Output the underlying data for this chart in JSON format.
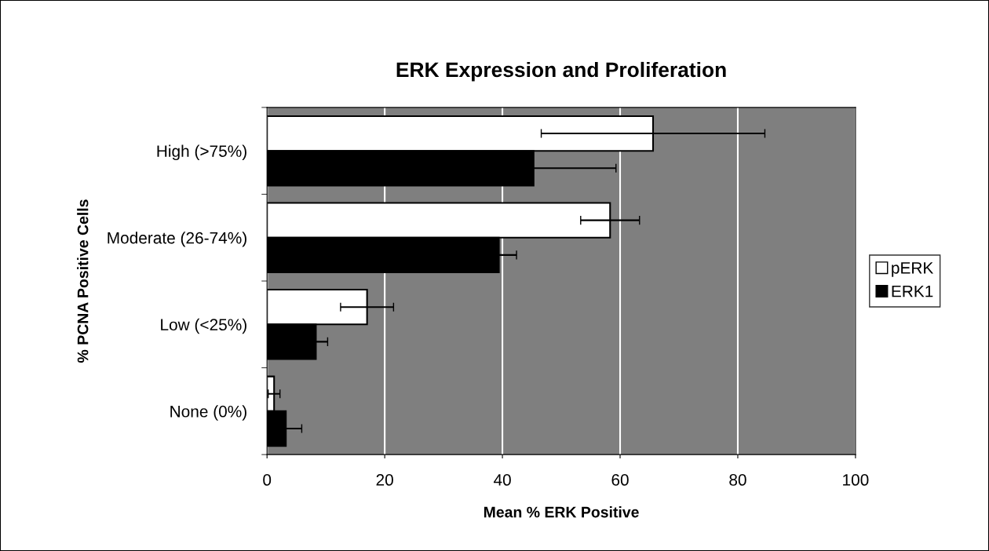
{
  "chart_data": {
    "type": "bar",
    "orientation": "horizontal",
    "title": "ERK Expression and Proliferation",
    "xlabel": "Mean % ERK Positive",
    "ylabel": "% PCNA Positive Cells",
    "categories": [
      "High (>75%)",
      "Moderate (26-74%)",
      "Low (<25%)",
      "None (0%)"
    ],
    "series": [
      {
        "name": "pERK",
        "color": "#ffffff",
        "values": [
          65.6,
          58.3,
          17,
          1.2
        ],
        "errors": [
          19,
          5,
          4.5,
          1
        ]
      },
      {
        "name": "ERK1",
        "color": "#000000",
        "values": [
          45.3,
          39.4,
          8.3,
          3.2
        ],
        "errors": [
          14,
          3,
          2,
          2.7
        ]
      }
    ],
    "xlim": [
      0,
      100
    ],
    "xticks": [
      0,
      20,
      40,
      60,
      80,
      100
    ],
    "grid": "x",
    "legend": "right"
  }
}
